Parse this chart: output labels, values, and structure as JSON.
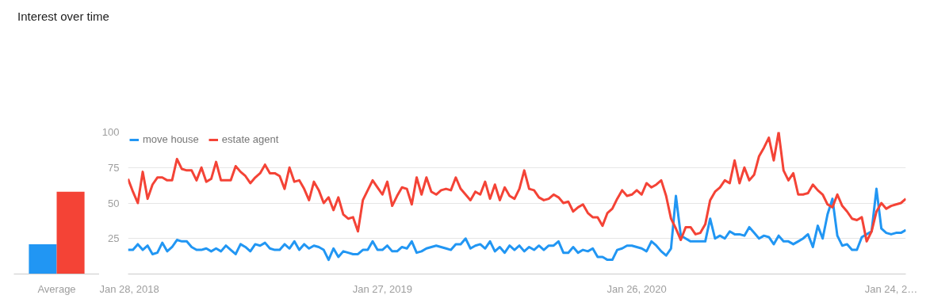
{
  "chart_data": [
    {
      "type": "bar",
      "title": "Interest over time",
      "categories": [
        "Average"
      ],
      "ylim": [
        0,
        100
      ],
      "tick_labels": "x",
      "series": [
        {
          "color": "#2196f3",
          "values": [
            21
          ]
        },
        {
          "color": "#f44336",
          "values": [
            58
          ]
        }
      ]
    },
    {
      "type": "line",
      "legend": "top left",
      "grid": "y",
      "ylim": [
        0,
        100
      ],
      "yticks": [
        25,
        50,
        75,
        100
      ],
      "xlim": [
        "2018-01-28",
        "2021-02-14"
      ],
      "xticks": [
        {
          "value": "2018-01-28",
          "label": "Jan 28, 2018"
        },
        {
          "value": "2019-01-27",
          "label": "Jan 27, 2019"
        },
        {
          "value": "2020-01-26",
          "label": "Jan 26, 2020"
        },
        {
          "value": "2021-01-24",
          "label": "Jan 24, 2…"
        }
      ],
      "x": [
        "2018-01-28",
        "2018-02-04",
        "2018-02-11",
        "2018-02-18",
        "2018-02-25",
        "2018-03-04",
        "2018-03-11",
        "2018-03-18",
        "2018-03-25",
        "2018-04-01",
        "2018-04-08",
        "2018-04-15",
        "2018-04-22",
        "2018-04-29",
        "2018-05-06",
        "2018-05-13",
        "2018-05-20",
        "2018-05-27",
        "2018-06-03",
        "2018-06-10",
        "2018-06-17",
        "2018-06-24",
        "2018-07-01",
        "2018-07-08",
        "2018-07-15",
        "2018-07-22",
        "2018-07-29",
        "2018-08-05",
        "2018-08-12",
        "2018-08-19",
        "2018-08-26",
        "2018-09-02",
        "2018-09-09",
        "2018-09-16",
        "2018-09-23",
        "2018-09-30",
        "2018-10-07",
        "2018-10-14",
        "2018-10-21",
        "2018-10-28",
        "2018-11-04",
        "2018-11-11",
        "2018-11-18",
        "2018-11-25",
        "2018-12-02",
        "2018-12-09",
        "2018-12-16",
        "2018-12-23",
        "2018-12-30",
        "2019-01-06",
        "2019-01-13",
        "2019-01-20",
        "2019-01-27",
        "2019-02-03",
        "2019-02-10",
        "2019-02-17",
        "2019-02-24",
        "2019-03-03",
        "2019-03-10",
        "2019-03-17",
        "2019-03-24",
        "2019-03-31",
        "2019-04-07",
        "2019-04-14",
        "2019-04-21",
        "2019-04-28",
        "2019-05-05",
        "2019-05-12",
        "2019-05-19",
        "2019-05-26",
        "2019-06-02",
        "2019-06-09",
        "2019-06-16",
        "2019-06-23",
        "2019-06-30",
        "2019-07-07",
        "2019-07-14",
        "2019-07-21",
        "2019-07-28",
        "2019-08-04",
        "2019-08-11",
        "2019-08-18",
        "2019-08-25",
        "2019-09-01",
        "2019-09-08",
        "2019-09-15",
        "2019-09-22",
        "2019-09-29",
        "2019-10-06",
        "2019-10-13",
        "2019-10-20",
        "2019-10-27",
        "2019-11-03",
        "2019-11-10",
        "2019-11-17",
        "2019-11-24",
        "2019-12-01",
        "2019-12-08",
        "2019-12-15",
        "2019-12-22",
        "2019-12-29",
        "2020-01-05",
        "2020-01-12",
        "2020-01-19",
        "2020-01-26",
        "2020-02-02",
        "2020-02-09",
        "2020-02-16",
        "2020-02-23",
        "2020-03-01",
        "2020-03-08",
        "2020-03-15",
        "2020-03-22",
        "2020-03-29",
        "2020-04-05",
        "2020-04-12",
        "2020-04-19",
        "2020-04-26",
        "2020-05-03",
        "2020-05-10",
        "2020-05-17",
        "2020-05-24",
        "2020-05-31",
        "2020-06-07",
        "2020-06-14",
        "2020-06-21",
        "2020-06-28",
        "2020-07-05",
        "2020-07-12",
        "2020-07-19",
        "2020-07-26",
        "2020-08-02",
        "2020-08-09",
        "2020-08-16",
        "2020-08-23",
        "2020-08-30",
        "2020-09-06",
        "2020-09-13",
        "2020-09-20",
        "2020-09-27",
        "2020-10-04",
        "2020-10-11",
        "2020-10-18",
        "2020-10-25",
        "2020-11-01",
        "2020-11-08",
        "2020-11-15",
        "2020-11-22",
        "2020-11-29",
        "2020-12-06",
        "2020-12-13",
        "2020-12-20",
        "2020-12-27",
        "2021-01-03",
        "2021-01-10",
        "2021-01-17",
        "2021-01-24",
        "2021-01-31",
        "2021-02-07",
        "2021-02-14"
      ],
      "series": [
        {
          "name": "move house",
          "color": "#2196f3",
          "values": [
            17,
            17,
            21,
            17,
            20,
            14,
            15,
            22,
            16,
            19,
            24,
            23,
            23,
            19,
            17,
            17,
            18,
            16,
            18,
            16,
            20,
            17,
            14,
            21,
            19,
            16,
            21,
            20,
            22,
            18,
            17,
            17,
            21,
            18,
            23,
            17,
            21,
            18,
            20,
            19,
            17,
            10,
            18,
            12,
            16,
            15,
            14,
            14,
            17,
            17,
            23,
            17,
            17,
            20,
            16,
            16,
            19,
            18,
            23,
            15,
            16,
            18,
            19,
            20,
            19,
            18,
            17,
            21,
            21,
            25,
            18,
            20,
            21,
            18,
            23,
            16,
            19,
            15,
            20,
            17,
            20,
            16,
            19,
            17,
            20,
            17,
            20,
            20,
            23,
            15,
            15,
            19,
            15,
            17,
            16,
            18,
            12,
            12,
            10,
            10,
            17,
            18,
            20,
            20,
            19,
            18,
            16,
            23,
            20,
            16,
            13,
            18,
            55,
            27,
            25,
            23,
            23,
            23,
            23,
            39,
            25,
            27,
            25,
            30,
            28,
            28,
            27,
            33,
            29,
            25,
            27,
            26,
            21,
            27,
            23,
            23,
            21,
            23,
            25,
            28,
            19,
            34,
            25,
            42,
            53,
            27,
            20,
            21,
            17,
            17,
            26,
            28,
            30,
            60,
            32,
            29,
            28,
            29,
            29,
            31
          ]
        },
        {
          "name": "estate agent",
          "color": "#f44336",
          "values": [
            67,
            58,
            50,
            72,
            53,
            63,
            68,
            68,
            66,
            66,
            81,
            74,
            73,
            73,
            66,
            75,
            65,
            67,
            79,
            66,
            66,
            66,
            76,
            72,
            69,
            64,
            68,
            71,
            77,
            71,
            71,
            69,
            60,
            75,
            65,
            66,
            60,
            52,
            65,
            59,
            50,
            54,
            45,
            54,
            42,
            39,
            40,
            30,
            52,
            59,
            66,
            61,
            56,
            65,
            48,
            55,
            61,
            60,
            49,
            68,
            56,
            68,
            58,
            56,
            59,
            60,
            59,
            68,
            60,
            56,
            52,
            58,
            56,
            65,
            53,
            63,
            52,
            61,
            55,
            53,
            60,
            73,
            60,
            59,
            54,
            52,
            53,
            56,
            54,
            50,
            51,
            44,
            47,
            49,
            43,
            40,
            40,
            34,
            43,
            46,
            53,
            59,
            55,
            56,
            59,
            56,
            64,
            61,
            63,
            66,
            55,
            39,
            32,
            24,
            33,
            33,
            28,
            29,
            35,
            52,
            58,
            61,
            66,
            64,
            80,
            64,
            75,
            66,
            70,
            83,
            89,
            96,
            80,
            100,
            73,
            66,
            71,
            56,
            56,
            57,
            63,
            59,
            56,
            49,
            47,
            56,
            48,
            44,
            39,
            38,
            40,
            23,
            30,
            44,
            50,
            46,
            48,
            49,
            50,
            53
          ]
        }
      ]
    }
  ]
}
